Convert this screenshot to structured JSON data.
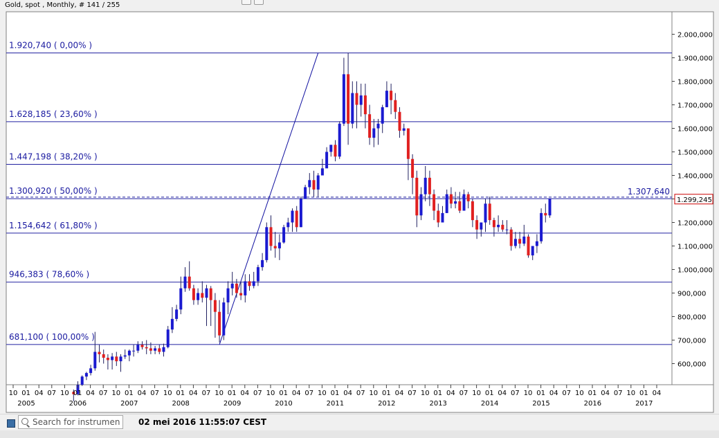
{
  "title": "Gold, spot , Monthly, # 141 / 255",
  "status": {
    "search_placeholder": "Search for instrument",
    "timestamp": "02 mei 2016 11:55:07 CEST"
  },
  "colors": {
    "background": "#ffffff",
    "grid_line": "#2020a0",
    "fib_label": "#1a1aa0",
    "bull_candle": "#1a1ad0",
    "bear_candle": "#e02020",
    "current_price_box": "#cc0000"
  },
  "chart_data": {
    "type": "candlestick",
    "instrument": "Gold, spot",
    "interval": "Monthly",
    "ylim": [
      500000,
      2080000
    ],
    "y_ticks": [
      "2.000,000",
      "1.900,000",
      "1.800,000",
      "1.700,000",
      "1.600,000",
      "1.500,000",
      "1.400,000",
      "1.300,000",
      "1.200,000",
      "1.100,000",
      "1.000,000",
      "900,000",
      "800,000",
      "700,000",
      "600,000"
    ],
    "y_tick_values": [
      2000000,
      1900000,
      1800000,
      1700000,
      1600000,
      1500000,
      1400000,
      1300000,
      1200000,
      1100000,
      1000000,
      900000,
      800000,
      700000,
      600000
    ],
    "x_month_labels": [
      "10",
      "01",
      "04",
      "07",
      "10",
      "01",
      "04",
      "07",
      "10",
      "01",
      "04",
      "07",
      "10",
      "01",
      "04",
      "07",
      "10",
      "01",
      "04",
      "07",
      "10",
      "01",
      "04",
      "07",
      "10",
      "01",
      "04",
      "07",
      "10",
      "01",
      "04",
      "07",
      "10",
      "01",
      "04",
      "07",
      "10",
      "01",
      "04",
      "07",
      "10",
      "01",
      "04",
      "07",
      "10",
      "01",
      "04",
      "07",
      "10",
      "01",
      "04"
    ],
    "x_year_labels": [
      "2005",
      "2006",
      "2007",
      "2008",
      "2009",
      "2010",
      "2011",
      "2012",
      "2013",
      "2014",
      "2015",
      "2016",
      "2017"
    ],
    "fib_levels": [
      {
        "label": "1.920,740 ( 0,00% )",
        "value": 1920740
      },
      {
        "label": "1.628,185 ( 23,60% )",
        "value": 1628185
      },
      {
        "label": "1.447,198 ( 38,20% )",
        "value": 1447198
      },
      {
        "label": "1.300,920 ( 50,00% )",
        "value": 1300920
      },
      {
        "label": "1.154,642 ( 61,80% )",
        "value": 1154642
      },
      {
        "label": "946,383 ( 78,60% )",
        "value": 946383
      },
      {
        "label": "681,100 ( 100,00% )",
        "value": 681100
      }
    ],
    "trendline": {
      "from_month_index": 48,
      "from_value": 681100,
      "to_month_index": 71,
      "to_value": 1920740
    },
    "dashed_level": {
      "value": 1307640,
      "label": "1.307,640"
    },
    "current_price": {
      "value": 1299245,
      "label": "1.299,245"
    },
    "candles": [
      [
        480000,
        470000,
        490000,
        440000
      ],
      [
        470000,
        510000,
        525000,
        465000
      ],
      [
        510000,
        545000,
        550000,
        505000
      ],
      [
        545000,
        560000,
        565000,
        530000
      ],
      [
        560000,
        580000,
        595000,
        550000
      ],
      [
        580000,
        650000,
        735000,
        570000
      ],
      [
        650000,
        640000,
        680000,
        605000
      ],
      [
        640000,
        625000,
        660000,
        600000
      ],
      [
        625000,
        615000,
        640000,
        575000
      ],
      [
        615000,
        630000,
        645000,
        575000
      ],
      [
        630000,
        610000,
        650000,
        590000
      ],
      [
        610000,
        630000,
        640000,
        565000
      ],
      [
        630000,
        635000,
        660000,
        620000
      ],
      [
        635000,
        655000,
        660000,
        610000
      ],
      [
        655000,
        655000,
        680000,
        630000
      ],
      [
        655000,
        680000,
        695000,
        645000
      ],
      [
        680000,
        670000,
        695000,
        660000
      ],
      [
        670000,
        665000,
        700000,
        640000
      ],
      [
        665000,
        655000,
        690000,
        640000
      ],
      [
        655000,
        665000,
        675000,
        640000
      ],
      [
        665000,
        650000,
        680000,
        640000
      ],
      [
        650000,
        670000,
        685000,
        630000
      ],
      [
        670000,
        745000,
        760000,
        665000
      ],
      [
        745000,
        790000,
        840000,
        730000
      ],
      [
        790000,
        830000,
        850000,
        780000
      ],
      [
        830000,
        920000,
        970000,
        810000
      ],
      [
        920000,
        970000,
        1010000,
        905000
      ],
      [
        970000,
        920000,
        1035000,
        910000
      ],
      [
        920000,
        870000,
        935000,
        850000
      ],
      [
        870000,
        900000,
        920000,
        850000
      ],
      [
        900000,
        880000,
        950000,
        860000
      ],
      [
        880000,
        920000,
        935000,
        760000
      ],
      [
        920000,
        870000,
        930000,
        760000
      ],
      [
        870000,
        820000,
        900000,
        710000
      ],
      [
        820000,
        720000,
        870000,
        690000
      ],
      [
        720000,
        860000,
        880000,
        700000
      ],
      [
        860000,
        920000,
        950000,
        810000
      ],
      [
        920000,
        940000,
        990000,
        890000
      ],
      [
        940000,
        900000,
        960000,
        880000
      ],
      [
        900000,
        890000,
        950000,
        870000
      ],
      [
        890000,
        950000,
        980000,
        860000
      ],
      [
        950000,
        930000,
        980000,
        910000
      ],
      [
        930000,
        950000,
        990000,
        920000
      ],
      [
        950000,
        1010000,
        1020000,
        930000
      ],
      [
        1010000,
        1040000,
        1070000,
        995000
      ],
      [
        1040000,
        1180000,
        1200000,
        1030000
      ],
      [
        1180000,
        1100000,
        1230000,
        1080000
      ],
      [
        1100000,
        1090000,
        1160000,
        1050000
      ],
      [
        1090000,
        1115000,
        1150000,
        1040000
      ],
      [
        1115000,
        1180000,
        1190000,
        1110000
      ],
      [
        1180000,
        1200000,
        1220000,
        1160000
      ],
      [
        1200000,
        1250000,
        1260000,
        1160000
      ],
      [
        1250000,
        1180000,
        1270000,
        1160000
      ],
      [
        1180000,
        1300000,
        1310000,
        1180000
      ],
      [
        1300000,
        1350000,
        1360000,
        1300000
      ],
      [
        1350000,
        1380000,
        1410000,
        1320000
      ],
      [
        1380000,
        1340000,
        1420000,
        1310000
      ],
      [
        1340000,
        1400000,
        1410000,
        1310000
      ],
      [
        1400000,
        1430000,
        1470000,
        1400000
      ],
      [
        1430000,
        1500000,
        1520000,
        1440000
      ],
      [
        1500000,
        1530000,
        1530000,
        1480000
      ],
      [
        1530000,
        1480000,
        1550000,
        1460000
      ],
      [
        1480000,
        1620000,
        1630000,
        1470000
      ],
      [
        1620000,
        1830000,
        1900000,
        1610000
      ],
      [
        1830000,
        1620000,
        1920740,
        1530000
      ],
      [
        1620000,
        1750000,
        1800000,
        1600000
      ],
      [
        1750000,
        1700000,
        1800000,
        1600000
      ],
      [
        1700000,
        1740000,
        1790000,
        1650000
      ],
      [
        1740000,
        1660000,
        1790000,
        1600000
      ],
      [
        1660000,
        1560000,
        1700000,
        1530000
      ],
      [
        1560000,
        1600000,
        1640000,
        1520000
      ],
      [
        1600000,
        1620000,
        1640000,
        1530000
      ],
      [
        1620000,
        1690000,
        1700000,
        1580000
      ],
      [
        1690000,
        1760000,
        1800000,
        1690000
      ],
      [
        1760000,
        1720000,
        1790000,
        1660000
      ],
      [
        1720000,
        1670000,
        1750000,
        1640000
      ],
      [
        1670000,
        1590000,
        1690000,
        1560000
      ],
      [
        1590000,
        1600000,
        1620000,
        1570000
      ],
      [
        1600000,
        1470000,
        1600000,
        1380000
      ],
      [
        1470000,
        1390000,
        1490000,
        1320000
      ],
      [
        1390000,
        1230000,
        1420000,
        1180000
      ],
      [
        1230000,
        1320000,
        1350000,
        1210000
      ],
      [
        1320000,
        1390000,
        1440000,
        1290000
      ],
      [
        1390000,
        1320000,
        1420000,
        1270000
      ],
      [
        1320000,
        1250000,
        1340000,
        1210000
      ],
      [
        1250000,
        1200000,
        1280000,
        1180000
      ],
      [
        1200000,
        1240000,
        1270000,
        1200000
      ],
      [
        1240000,
        1320000,
        1340000,
        1240000
      ],
      [
        1320000,
        1280000,
        1350000,
        1260000
      ],
      [
        1280000,
        1290000,
        1330000,
        1260000
      ],
      [
        1290000,
        1250000,
        1330000,
        1240000
      ],
      [
        1250000,
        1320000,
        1340000,
        1260000
      ],
      [
        1320000,
        1290000,
        1330000,
        1260000
      ],
      [
        1290000,
        1210000,
        1300000,
        1180000
      ],
      [
        1210000,
        1170000,
        1230000,
        1130000
      ],
      [
        1170000,
        1200000,
        1200000,
        1140000
      ],
      [
        1200000,
        1280000,
        1300000,
        1160000
      ],
      [
        1280000,
        1210000,
        1310000,
        1190000
      ],
      [
        1210000,
        1180000,
        1220000,
        1140000
      ],
      [
        1180000,
        1190000,
        1230000,
        1160000
      ],
      [
        1190000,
        1170000,
        1210000,
        1160000
      ],
      [
        1170000,
        1170000,
        1210000,
        1150000
      ],
      [
        1170000,
        1100000,
        1180000,
        1080000
      ],
      [
        1100000,
        1130000,
        1160000,
        1090000
      ],
      [
        1130000,
        1110000,
        1160000,
        1090000
      ],
      [
        1110000,
        1140000,
        1190000,
        1100000
      ],
      [
        1140000,
        1060000,
        1150000,
        1050000
      ],
      [
        1060000,
        1100000,
        1100000,
        1040000
      ],
      [
        1100000,
        1120000,
        1150000,
        1070000
      ],
      [
        1120000,
        1240000,
        1260000,
        1110000
      ],
      [
        1240000,
        1230000,
        1280000,
        1200000
      ],
      [
        1230000,
        1300000,
        1300000,
        1220000
      ]
    ]
  }
}
